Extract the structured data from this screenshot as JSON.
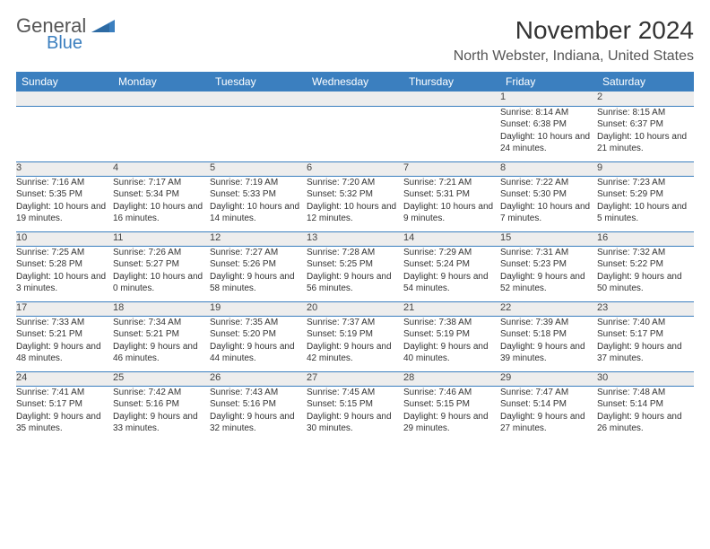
{
  "logo": {
    "word1": "General",
    "word2": "Blue",
    "triangle_fill": "#3b7fbf"
  },
  "title": "November 2024",
  "location": "North Webster, Indiana, United States",
  "colors": {
    "header_bg": "#3b7fbf",
    "header_fg": "#ffffff",
    "daynum_bg": "#ededed",
    "border": "#3b7fbf"
  },
  "daysOfWeek": [
    "Sunday",
    "Monday",
    "Tuesday",
    "Wednesday",
    "Thursday",
    "Friday",
    "Saturday"
  ],
  "weeks": [
    [
      null,
      null,
      null,
      null,
      null,
      {
        "n": "1",
        "sunrise": "8:14 AM",
        "sunset": "6:38 PM",
        "day_h": 10,
        "day_m": 24
      },
      {
        "n": "2",
        "sunrise": "8:15 AM",
        "sunset": "6:37 PM",
        "day_h": 10,
        "day_m": 21
      }
    ],
    [
      {
        "n": "3",
        "sunrise": "7:16 AM",
        "sunset": "5:35 PM",
        "day_h": 10,
        "day_m": 19
      },
      {
        "n": "4",
        "sunrise": "7:17 AM",
        "sunset": "5:34 PM",
        "day_h": 10,
        "day_m": 16
      },
      {
        "n": "5",
        "sunrise": "7:19 AM",
        "sunset": "5:33 PM",
        "day_h": 10,
        "day_m": 14
      },
      {
        "n": "6",
        "sunrise": "7:20 AM",
        "sunset": "5:32 PM",
        "day_h": 10,
        "day_m": 12
      },
      {
        "n": "7",
        "sunrise": "7:21 AM",
        "sunset": "5:31 PM",
        "day_h": 10,
        "day_m": 9
      },
      {
        "n": "8",
        "sunrise": "7:22 AM",
        "sunset": "5:30 PM",
        "day_h": 10,
        "day_m": 7
      },
      {
        "n": "9",
        "sunrise": "7:23 AM",
        "sunset": "5:29 PM",
        "day_h": 10,
        "day_m": 5
      }
    ],
    [
      {
        "n": "10",
        "sunrise": "7:25 AM",
        "sunset": "5:28 PM",
        "day_h": 10,
        "day_m": 3
      },
      {
        "n": "11",
        "sunrise": "7:26 AM",
        "sunset": "5:27 PM",
        "day_h": 10,
        "day_m": 0
      },
      {
        "n": "12",
        "sunrise": "7:27 AM",
        "sunset": "5:26 PM",
        "day_h": 9,
        "day_m": 58
      },
      {
        "n": "13",
        "sunrise": "7:28 AM",
        "sunset": "5:25 PM",
        "day_h": 9,
        "day_m": 56
      },
      {
        "n": "14",
        "sunrise": "7:29 AM",
        "sunset": "5:24 PM",
        "day_h": 9,
        "day_m": 54
      },
      {
        "n": "15",
        "sunrise": "7:31 AM",
        "sunset": "5:23 PM",
        "day_h": 9,
        "day_m": 52
      },
      {
        "n": "16",
        "sunrise": "7:32 AM",
        "sunset": "5:22 PM",
        "day_h": 9,
        "day_m": 50
      }
    ],
    [
      {
        "n": "17",
        "sunrise": "7:33 AM",
        "sunset": "5:21 PM",
        "day_h": 9,
        "day_m": 48
      },
      {
        "n": "18",
        "sunrise": "7:34 AM",
        "sunset": "5:21 PM",
        "day_h": 9,
        "day_m": 46
      },
      {
        "n": "19",
        "sunrise": "7:35 AM",
        "sunset": "5:20 PM",
        "day_h": 9,
        "day_m": 44
      },
      {
        "n": "20",
        "sunrise": "7:37 AM",
        "sunset": "5:19 PM",
        "day_h": 9,
        "day_m": 42
      },
      {
        "n": "21",
        "sunrise": "7:38 AM",
        "sunset": "5:19 PM",
        "day_h": 9,
        "day_m": 40
      },
      {
        "n": "22",
        "sunrise": "7:39 AM",
        "sunset": "5:18 PM",
        "day_h": 9,
        "day_m": 39
      },
      {
        "n": "23",
        "sunrise": "7:40 AM",
        "sunset": "5:17 PM",
        "day_h": 9,
        "day_m": 37
      }
    ],
    [
      {
        "n": "24",
        "sunrise": "7:41 AM",
        "sunset": "5:17 PM",
        "day_h": 9,
        "day_m": 35
      },
      {
        "n": "25",
        "sunrise": "7:42 AM",
        "sunset": "5:16 PM",
        "day_h": 9,
        "day_m": 33
      },
      {
        "n": "26",
        "sunrise": "7:43 AM",
        "sunset": "5:16 PM",
        "day_h": 9,
        "day_m": 32
      },
      {
        "n": "27",
        "sunrise": "7:45 AM",
        "sunset": "5:15 PM",
        "day_h": 9,
        "day_m": 30
      },
      {
        "n": "28",
        "sunrise": "7:46 AM",
        "sunset": "5:15 PM",
        "day_h": 9,
        "day_m": 29
      },
      {
        "n": "29",
        "sunrise": "7:47 AM",
        "sunset": "5:14 PM",
        "day_h": 9,
        "day_m": 27
      },
      {
        "n": "30",
        "sunrise": "7:48 AM",
        "sunset": "5:14 PM",
        "day_h": 9,
        "day_m": 26
      }
    ]
  ],
  "labels": {
    "sunrise": "Sunrise:",
    "sunset": "Sunset:",
    "daylight_prefix": "Daylight:",
    "hours_word": "hours",
    "and_word": "and",
    "minutes_word": "minutes."
  }
}
